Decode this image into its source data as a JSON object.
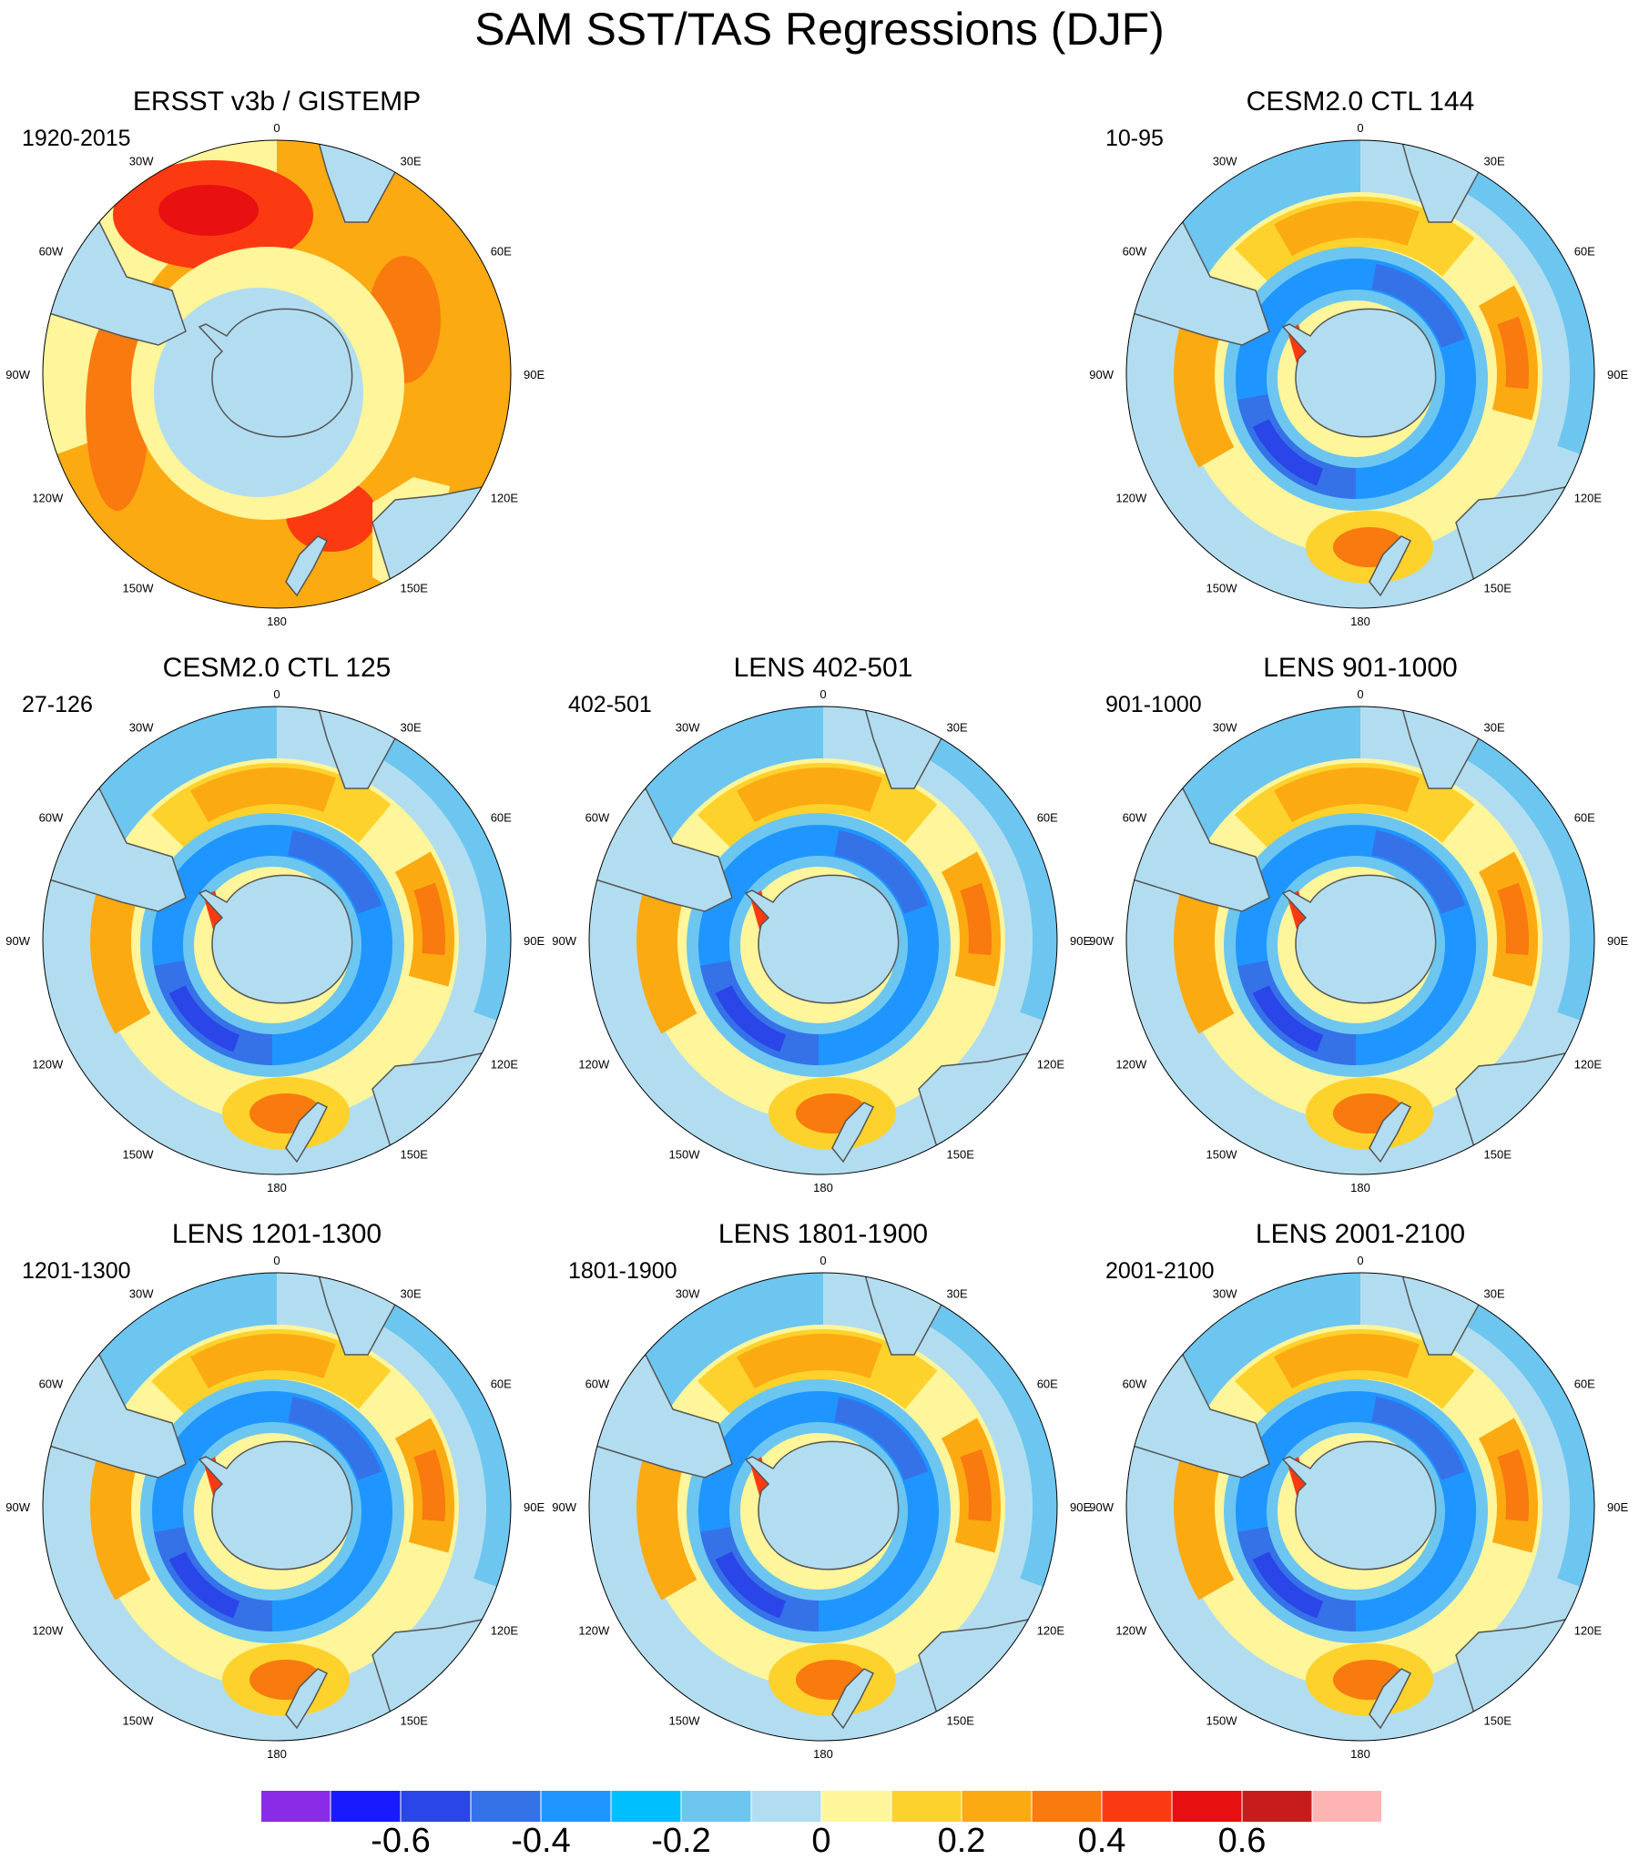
{
  "title": "SAM SST/TAS Regressions (DJF)",
  "panels": [
    {
      "title": "ERSST v3b / GISTEMP",
      "years": "1920-2015",
      "pattern": "obs"
    },
    {
      "title": "CESM2.0 CTL 144",
      "years": "10-95",
      "pattern": "model"
    },
    {
      "title": "CESM2.0 CTL 125",
      "years": "27-126",
      "pattern": "model"
    },
    {
      "title": "LENS 402-501",
      "years": "402-501",
      "pattern": "model"
    },
    {
      "title": "LENS 901-1000",
      "years": "901-1000",
      "pattern": "model"
    },
    {
      "title": "LENS 1201-1300",
      "years": "1201-1300",
      "pattern": "model"
    },
    {
      "title": "LENS 1801-1900",
      "years": "1801-1900",
      "pattern": "model"
    },
    {
      "title": "LENS 2001-2100",
      "years": "2001-2100",
      "pattern": "model"
    }
  ],
  "longitude_labels": [
    "0",
    "30E",
    "60E",
    "90E",
    "120E",
    "150E",
    "180",
    "150W",
    "120W",
    "90W",
    "60W",
    "30W"
  ],
  "colorbar": {
    "colors": [
      "#8a2be8",
      "#1a1aff",
      "#2a45e8",
      "#3572e8",
      "#1f96ff",
      "#00bfff",
      "#6cc6f0",
      "#b2ddf0",
      "#fff59a",
      "#fdd22c",
      "#fbaa12",
      "#f97a0e",
      "#fc3a12",
      "#e81010",
      "#c81c1c",
      "#ffb4b4"
    ],
    "labels": [
      "-0.6",
      "-0.4",
      "-0.2",
      "0",
      "0.2",
      "0.4",
      "0.6"
    ],
    "label_values": [
      -0.6,
      -0.4,
      -0.2,
      0,
      0.2,
      0.4,
      0.6
    ],
    "range": [
      -0.8,
      0.8
    ],
    "step": 0.1
  }
}
